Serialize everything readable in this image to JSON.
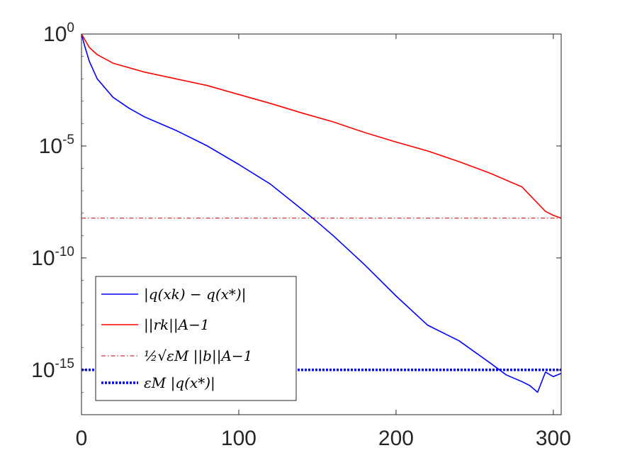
{
  "chart_data": {
    "type": "line",
    "title": "",
    "xlabel": "",
    "ylabel": "",
    "xlim": [
      0,
      305
    ],
    "ylim": [
      1e-17,
      1
    ],
    "yscale": "log",
    "grid": false,
    "legend_position": "bottom-left",
    "x_ticks": [
      0,
      100,
      200,
      300
    ],
    "x_tick_labels": [
      "0",
      "100",
      "200",
      "300"
    ],
    "y_ticks": [
      1,
      1e-05,
      1e-10,
      1e-15
    ],
    "y_tick_labels": [
      {
        "base": "10",
        "exp": "0"
      },
      {
        "base": "10",
        "exp": "-5"
      },
      {
        "base": "10",
        "exp": "-10"
      },
      {
        "base": "10",
        "exp": "-15"
      }
    ],
    "series": [
      {
        "name": "|q(x_k) − q(x_*)|",
        "legend_label": "|q(xk) − q(x*)|",
        "color": "#0000ff",
        "style": "solid",
        "x": [
          0,
          2,
          5,
          10,
          20,
          30,
          40,
          50,
          60,
          80,
          100,
          120,
          140,
          150,
          160,
          180,
          200,
          220,
          240,
          260,
          270,
          280,
          285,
          290,
          295,
          300,
          305
        ],
        "y": [
          1,
          0.3,
          0.06,
          0.01,
          0.0015,
          0.0005,
          0.0002,
          0.0001,
          5e-05,
          1e-05,
          1.5e-06,
          2e-07,
          1.5e-08,
          4e-09,
          1e-09,
          5e-11,
          2e-12,
          1e-13,
          2e-14,
          2e-15,
          6e-16,
          3e-16,
          2e-16,
          1e-16,
          8e-16,
          5e-16,
          7e-16
        ]
      },
      {
        "name": "||r_k||_{A^-1}",
        "legend_label": "||rk||A−1",
        "color": "#ff0000",
        "style": "solid",
        "x": [
          0,
          5,
          10,
          20,
          40,
          60,
          80,
          100,
          120,
          140,
          160,
          180,
          200,
          220,
          240,
          260,
          280,
          295,
          300,
          305
        ],
        "y": [
          1,
          0.25,
          0.12,
          0.05,
          0.02,
          0.01,
          0.005,
          0.002,
          0.0008,
          0.0003,
          0.00012,
          4e-05,
          1.5e-05,
          6e-06,
          2e-06,
          6e-07,
          1.5e-07,
          1.2e-08,
          8e-09,
          6e-09
        ]
      },
      {
        "name": "1/2 sqrt(eps_M) ||b||_{A^-1}",
        "legend_label": "½√εM ||b||A−1",
        "color": "#cc0000",
        "style": "dashdot",
        "x": [
          0,
          305
        ],
        "y": [
          6e-09,
          6e-09
        ]
      },
      {
        "name": "eps_M |q(x_*)|",
        "legend_label": "εM |q(x*)|",
        "color": "#0000ff",
        "style": "dotted",
        "x": [
          0,
          305
        ],
        "y": [
          1e-15,
          1e-15
        ]
      }
    ]
  }
}
